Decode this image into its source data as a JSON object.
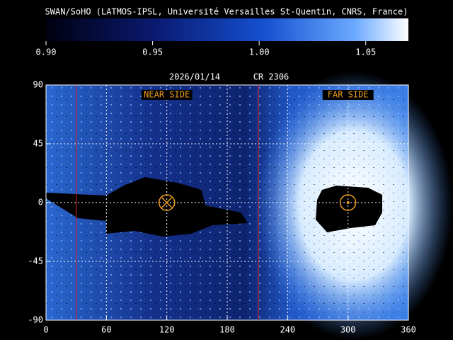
{
  "chart_data": {
    "type": "map",
    "title": "SWAN/SoHO (LATMOS-IPSL, Université Versailles St-Quentin, CNRS, France)",
    "date": "2026/01/14",
    "rotation": "CR 2306",
    "colorbar": {
      "lim": [
        0.9,
        1.07
      ],
      "ticks": [
        {
          "value": 0.9,
          "label": "0.90"
        },
        0.95,
        {
          "value": 1.0,
          "label": "1.00"
        },
        1.05
      ]
    },
    "xlim": [
      0,
      360
    ],
    "ylim": [
      -90,
      90
    ],
    "xticks": [
      0,
      60,
      120,
      180,
      240,
      300,
      360
    ],
    "yticks": [
      90,
      45,
      0,
      -45,
      -90
    ],
    "grid": true,
    "annotations": [
      {
        "text": "NEAR SIDE",
        "x": 120
      },
      {
        "text": "FAR SIDE",
        "x": 300
      }
    ],
    "red_lines": [
      30,
      211
    ],
    "circles": [
      {
        "x": 120,
        "y": 0
      },
      {
        "x": 300,
        "y": 0
      }
    ]
  }
}
